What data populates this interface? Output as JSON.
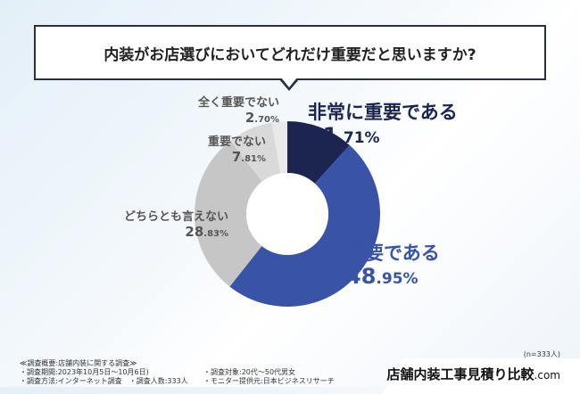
{
  "chart_data": {
    "type": "pie",
    "title": "内装がお店選びにおいてどれだけ重要だと思いますか?",
    "slices": [
      {
        "label": "非常に重要である",
        "value": 11.71,
        "int": "11",
        "dec": ".71%",
        "color": "#1b2550"
      },
      {
        "label": "重要である",
        "value": 48.95,
        "int": "48",
        "dec": ".95%",
        "color": "#3953a6"
      },
      {
        "label": "どちらとも言えない",
        "value": 28.83,
        "int": "28",
        "dec": ".83%",
        "color": "#c6c6c6"
      },
      {
        "label": "重要でない",
        "value": 7.81,
        "int": "7",
        "dec": ".81%",
        "color": "#d9d9d9"
      },
      {
        "label": "全く重要でない",
        "value": 2.7,
        "int": "2",
        "dec": ".70%",
        "color": "#e9e9e9"
      }
    ],
    "sample": "(n=333人)"
  },
  "notes": {
    "l1": "≪調査概要:店舗内装に関する調査≫",
    "l2": "・調査期間:2023年10月5日～10月6日)",
    "l3": "・調査方法:インターネット調査　・調査人数:333人",
    "r1": "・調査対象:20代～50代男女",
    "r2": "・モニター提供元:日本ビジネスリサーチ"
  },
  "logo": {
    "main": "店舗内装工事見積り比較",
    "suffix": ".com"
  }
}
